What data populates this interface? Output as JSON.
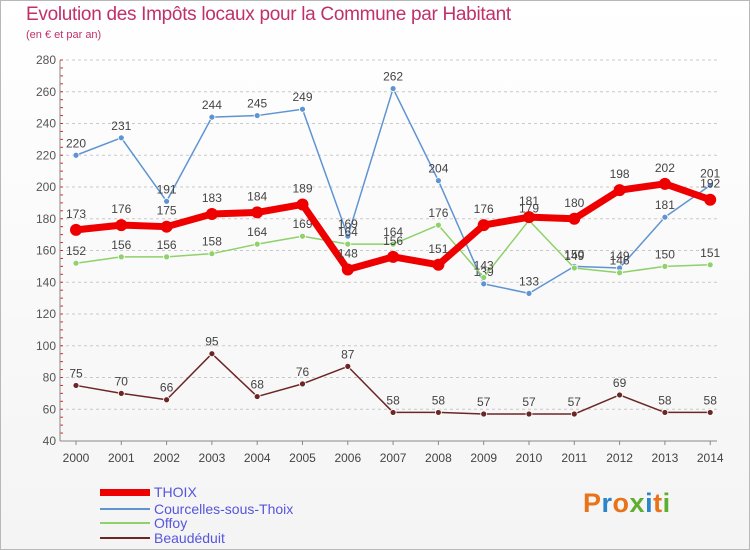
{
  "chart_data": {
    "type": "line",
    "title": "Evolution des Impôts locaux pour la Commune par Habitant",
    "subtitle": "(en € et par an)",
    "xlabel": "",
    "ylabel": "",
    "categories": [
      "2000",
      "2001",
      "2002",
      "2003",
      "2004",
      "2005",
      "2006",
      "2007",
      "2008",
      "2009",
      "2010",
      "2011",
      "2012",
      "2013",
      "2014"
    ],
    "ylim": [
      40,
      280
    ],
    "yticks": [
      40,
      60,
      80,
      100,
      120,
      140,
      160,
      180,
      200,
      220,
      240,
      260,
      280
    ],
    "grid": "horizontal-dashed",
    "legend_position": "bottom-left",
    "series": [
      {
        "name": "Courcelles-sous-Thoix",
        "color": "#5f94d2",
        "values": [
          220,
          231,
          191,
          244,
          245,
          249,
          169,
          262,
          204,
          139,
          133,
          150,
          149,
          181,
          201
        ]
      },
      {
        "name": "Offoy",
        "color": "#8fd16a",
        "values": [
          152,
          156,
          156,
          158,
          164,
          169,
          164,
          164,
          176,
          143,
          179,
          149,
          146,
          150,
          151
        ]
      },
      {
        "name": "Beaudéduit",
        "color": "#6b2626",
        "values": [
          75,
          70,
          66,
          95,
          68,
          76,
          87,
          58,
          58,
          57,
          57,
          57,
          69,
          58,
          58
        ]
      },
      {
        "name": "THOIX",
        "color": "#ee0000",
        "values": [
          173,
          176,
          175,
          183,
          184,
          189,
          148,
          156,
          151,
          176,
          181,
          180,
          198,
          202,
          192
        ]
      }
    ],
    "legend_order": [
      "THOIX",
      "Courcelles-sous-Thoix",
      "Offoy",
      "Beaudéduit"
    ]
  },
  "logo": {
    "text": "Proxiti",
    "letters": [
      "P",
      "r",
      "o",
      "x",
      "i",
      "t",
      "i"
    ],
    "colors": [
      "#e8731a",
      "#2a86c8",
      "#e8731a",
      "#5fae2f",
      "#2a86c8",
      "#e8731a",
      "#5fae2f"
    ]
  }
}
